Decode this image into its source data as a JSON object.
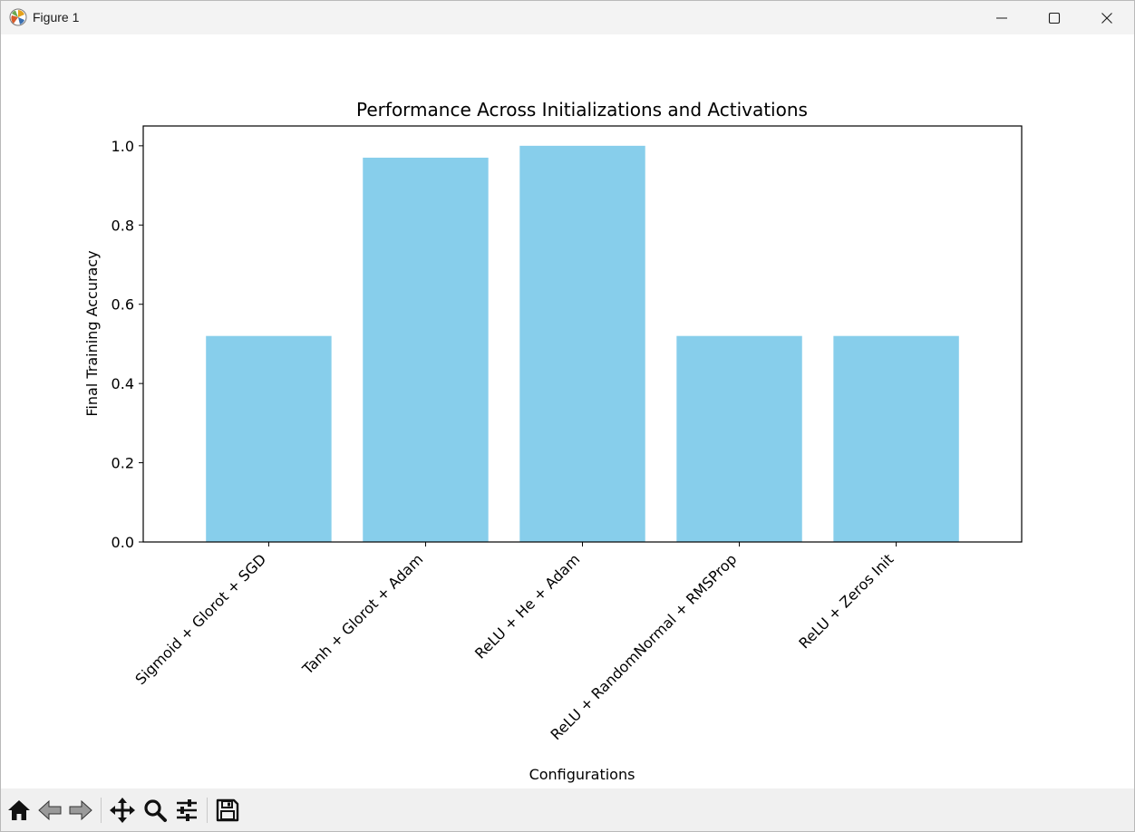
{
  "window": {
    "title": "Figure 1",
    "minimize_icon": "minimize-icon",
    "maximize_icon": "maximize-icon",
    "close_icon": "close-icon"
  },
  "toolbar": {
    "buttons": [
      {
        "name": "home",
        "icon": "home-icon"
      },
      {
        "name": "back",
        "icon": "back-arrow-icon"
      },
      {
        "name": "forward",
        "icon": "forward-arrow-icon"
      },
      {
        "name": "pan",
        "icon": "move-icon"
      },
      {
        "name": "zoom",
        "icon": "zoom-icon"
      },
      {
        "name": "configure-subplots",
        "icon": "sliders-icon"
      },
      {
        "name": "save",
        "icon": "save-icon"
      }
    ]
  },
  "chart_data": {
    "type": "bar",
    "title": "Performance Across Initializations and Activations",
    "xlabel": "Configurations",
    "ylabel": "Final Training Accuracy",
    "categories": [
      "Sigmoid + Glorot + SGD",
      "Tanh + Glorot + Adam",
      "ReLU + He + Adam",
      "ReLU + RandomNormal + RMSProp",
      "ReLU + Zeros Init"
    ],
    "values": [
      0.52,
      0.97,
      1.0,
      0.52,
      0.52
    ],
    "ylim": [
      0,
      1.05
    ],
    "yticks": [
      "0.0",
      "0.2",
      "0.4",
      "0.6",
      "0.8",
      "1.0"
    ],
    "bar_color": "#87ceeb",
    "grid": false
  }
}
